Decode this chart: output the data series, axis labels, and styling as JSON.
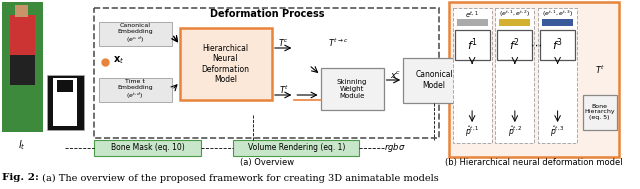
{
  "figsize": [
    6.4,
    1.89
  ],
  "dpi": 100,
  "bg_color": "#ffffff",
  "title_text": "Deformation Process",
  "subtitle_a": "(a) Overview",
  "subtitle_b": "(b) Hierarchical neural deformation model",
  "caption_bold": "Fig. 2:",
  "caption_text": " (a) The overview of the proposed framework for creating 3D animatable models",
  "bone_mask_color": "#c8e6c9",
  "volume_rendering_color": "#c8e6c9",
  "hierarchical_box_color": "#e8843a",
  "hierarchical_box_face": "#fce8d8",
  "right_panel_border": "#e8843a",
  "right_panel_face": "#fdf0e8",
  "deform_border": "#555555",
  "gray_box_face": "#f2f2f2",
  "gray_box_edge": "#888888",
  "embed_face": "#e8e8e8",
  "embed_edge": "#aaaaaa",
  "bar_gray": "#aaaaaa",
  "bar_yellow": "#d4b030",
  "bar_blue": "#3a5a9a",
  "orange_line": "#e8843a",
  "green_box_edge": "#4a9a4a"
}
